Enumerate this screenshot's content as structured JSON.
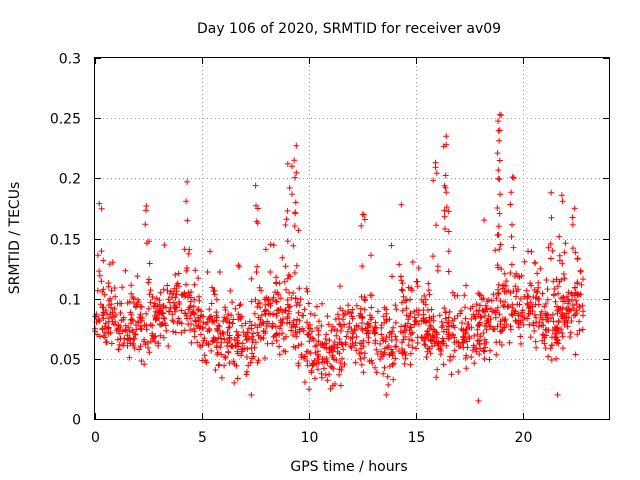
{
  "chart_data": {
    "type": "scatter",
    "title": "Day 106 of 2020, SRMTID for receiver av09",
    "xlabel": "GPS time / hours",
    "ylabel": "SRMTID / TECUs",
    "xlim": [
      0,
      24
    ],
    "ylim": [
      0,
      0.3
    ],
    "x_ticks": [
      0,
      5,
      10,
      15,
      20
    ],
    "x_tick_labels": [
      "0",
      "5",
      "10",
      "15",
      "20"
    ],
    "y_ticks": [
      0,
      0.05,
      0.1,
      0.15,
      0.2,
      0.25,
      0.3
    ],
    "y_tick_labels": [
      "0",
      "0.05",
      "0.1",
      "0.15",
      "0.2",
      "0.25",
      "0.3"
    ],
    "grid": true,
    "marker": "plus",
    "color": "#ff0000",
    "series": [
      {
        "name": "SRMTID",
        "x_start": 0,
        "x_end": 22.8,
        "n_points": 1500,
        "baseline_profile": [
          [
            0,
            0.085
          ],
          [
            1,
            0.08
          ],
          [
            2,
            0.075
          ],
          [
            3,
            0.085
          ],
          [
            4,
            0.1
          ],
          [
            5,
            0.08
          ],
          [
            6,
            0.07
          ],
          [
            7,
            0.065
          ],
          [
            8,
            0.085
          ],
          [
            9,
            0.09
          ],
          [
            10,
            0.06
          ],
          [
            11,
            0.055
          ],
          [
            12,
            0.075
          ],
          [
            13,
            0.07
          ],
          [
            14,
            0.065
          ],
          [
            15,
            0.08
          ],
          [
            16,
            0.075
          ],
          [
            17,
            0.07
          ],
          [
            18,
            0.075
          ],
          [
            19,
            0.09
          ],
          [
            20,
            0.1
          ],
          [
            21,
            0.08
          ],
          [
            22,
            0.085
          ],
          [
            22.8,
            0.09
          ]
        ],
        "peaks": [
          [
            0.2,
            0.179
          ],
          [
            2.4,
            0.177
          ],
          [
            4.3,
            0.197
          ],
          [
            7.5,
            0.194
          ],
          [
            9.4,
            0.227
          ],
          [
            9.3,
            0.215
          ],
          [
            9.0,
            0.212
          ],
          [
            12.5,
            0.17
          ],
          [
            15.9,
            0.213
          ],
          [
            16.4,
            0.235
          ],
          [
            16.4,
            0.228
          ],
          [
            18.9,
            0.253
          ],
          [
            18.9,
            0.24
          ],
          [
            18.8,
            0.221
          ],
          [
            19.5,
            0.201
          ],
          [
            21.3,
            0.188
          ],
          [
            22.4,
            0.175
          ],
          [
            21.8,
            0.186
          ],
          [
            14.3,
            0.178
          ]
        ],
        "lows": [
          [
            7.3,
            0.02
          ],
          [
            13.6,
            0.02
          ],
          [
            17.9,
            0.015
          ],
          [
            21.6,
            0.02
          ],
          [
            11.0,
            0.025
          ],
          [
            6.5,
            0.03
          ]
        ]
      }
    ]
  }
}
